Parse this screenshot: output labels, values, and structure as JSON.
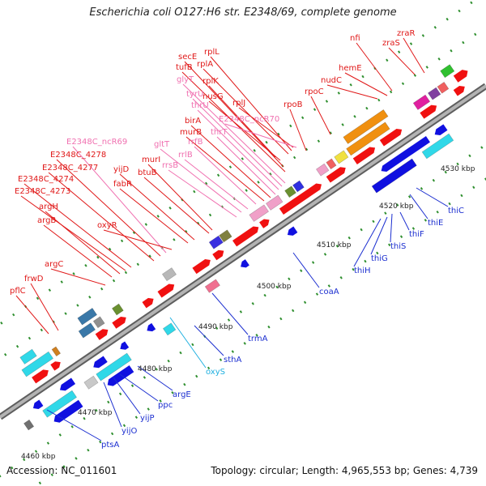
{
  "title": "Escherichia coli O127:H6 str. E2348/69, complete genome",
  "footer": {
    "accession": "Accession: NC_011601",
    "summary": "Topology: circular; Length: 4,965,553 bp; Genes: 4,739"
  },
  "colors": {
    "backbone": "#9a9a9a",
    "tick": "#2f8f2f",
    "label_upper": "#e01818",
    "label_pink": "#f070b0",
    "label_lower": "#1c2fd0",
    "label_cyan": "#20b0e0"
  },
  "scale_labels": [
    "4460 kbp",
    "4470 kbp",
    "4480 kbp",
    "4490 kbp",
    "4500 kbp",
    "4510 kbp",
    "4520 kbp",
    "4530 kbp"
  ],
  "upper_labels": [
    {
      "text": "pflC",
      "color": "red"
    },
    {
      "text": "frwD",
      "color": "red"
    },
    {
      "text": "argC",
      "color": "red"
    },
    {
      "text": "argB",
      "color": "red"
    },
    {
      "text": "argH",
      "color": "red"
    },
    {
      "text": "E2348C_4273",
      "color": "red"
    },
    {
      "text": "E2348C_4274",
      "color": "red"
    },
    {
      "text": "E2348C_4277",
      "color": "red"
    },
    {
      "text": "E2348C_4278",
      "color": "red"
    },
    {
      "text": "E2348C_ncR69",
      "color": "pink"
    },
    {
      "text": "oxyR",
      "color": "red"
    },
    {
      "text": "fabR",
      "color": "red"
    },
    {
      "text": "yijD",
      "color": "red"
    },
    {
      "text": "btuB",
      "color": "red"
    },
    {
      "text": "murI",
      "color": "red"
    },
    {
      "text": "rrsB",
      "color": "pink"
    },
    {
      "text": "gltT",
      "color": "pink"
    },
    {
      "text": "rrlB",
      "color": "pink"
    },
    {
      "text": "rrfB",
      "color": "pink"
    },
    {
      "text": "murB",
      "color": "red"
    },
    {
      "text": "birA",
      "color": "red"
    },
    {
      "text": "thrT",
      "color": "pink"
    },
    {
      "text": "thrU",
      "color": "pink"
    },
    {
      "text": "tyrU",
      "color": "pink"
    },
    {
      "text": "glyT",
      "color": "pink"
    },
    {
      "text": "tufB",
      "color": "red"
    },
    {
      "text": "secE",
      "color": "red"
    },
    {
      "text": "nusG",
      "color": "red"
    },
    {
      "text": "rplK",
      "color": "red"
    },
    {
      "text": "rplA",
      "color": "red"
    },
    {
      "text": "rplL",
      "color": "red"
    },
    {
      "text": "rplJ",
      "color": "red"
    },
    {
      "text": "E2348C_ncR70",
      "color": "pink"
    },
    {
      "text": "rpoB",
      "color": "red"
    },
    {
      "text": "rpoC",
      "color": "red"
    },
    {
      "text": "nudC",
      "color": "red"
    },
    {
      "text": "hemE",
      "color": "red"
    },
    {
      "text": "nfi",
      "color": "red"
    },
    {
      "text": "zraS",
      "color": "red"
    },
    {
      "text": "zraR",
      "color": "red"
    }
  ],
  "lower_labels": [
    {
      "text": "ptsA",
      "color": "blue"
    },
    {
      "text": "yijO",
      "color": "blue"
    },
    {
      "text": "yijP",
      "color": "blue"
    },
    {
      "text": "ppc",
      "color": "blue"
    },
    {
      "text": "argE",
      "color": "blue"
    },
    {
      "text": "oxyS",
      "color": "cyan"
    },
    {
      "text": "sthA",
      "color": "blue"
    },
    {
      "text": "trmA",
      "color": "blue"
    },
    {
      "text": "coaA",
      "color": "blue"
    },
    {
      "text": "thiH",
      "color": "blue"
    },
    {
      "text": "thiG",
      "color": "blue"
    },
    {
      "text": "thiS",
      "color": "blue"
    },
    {
      "text": "thiF",
      "color": "blue"
    },
    {
      "text": "thiE",
      "color": "blue"
    },
    {
      "text": "thiC",
      "color": "blue"
    }
  ]
}
